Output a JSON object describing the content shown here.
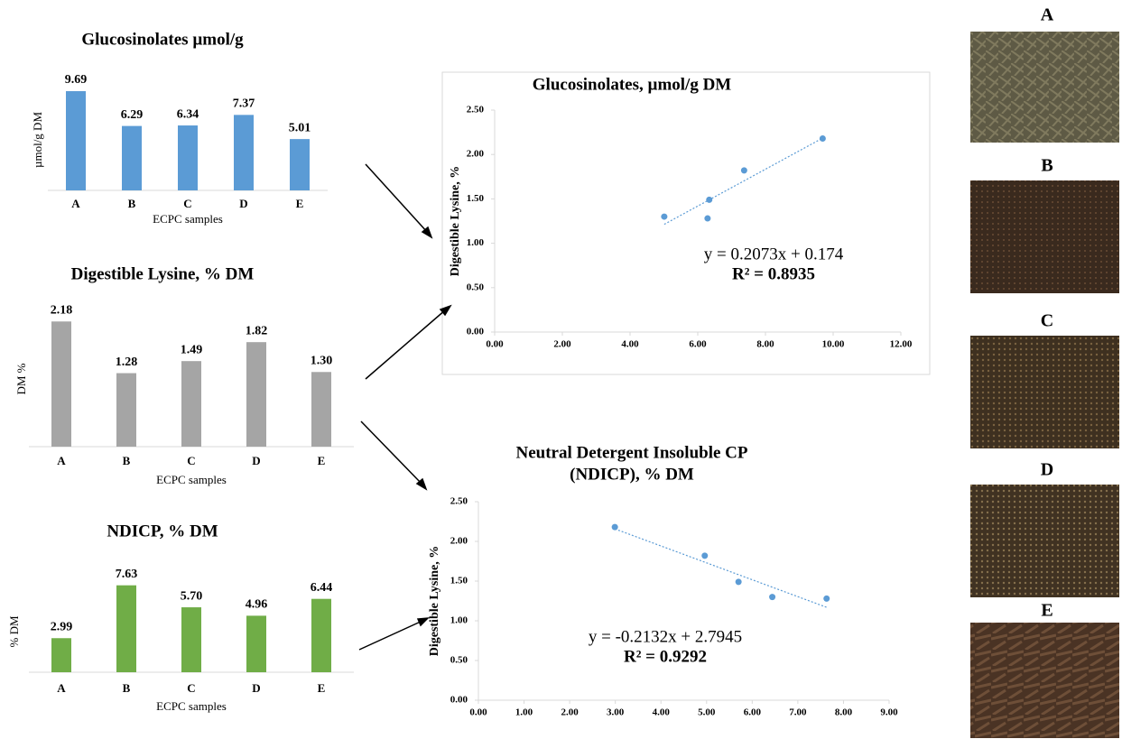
{
  "chart_data": [
    {
      "type": "bar",
      "title": "Glucosinolates µmol/g",
      "y_label": "µmol/g DM",
      "x_label": "ECPC samples",
      "categories": [
        "A",
        "B",
        "C",
        "D",
        "E"
      ],
      "values": [
        9.69,
        6.29,
        6.34,
        7.37,
        5.01
      ],
      "value_labels": [
        "9.69",
        "6.29",
        "6.34",
        "7.37",
        "5.01"
      ],
      "color": "#5b9bd5",
      "ylim": [
        0,
        10
      ]
    },
    {
      "type": "bar",
      "title": "Digestible Lysine, % DM",
      "y_label": "DM %",
      "x_label": "ECPC samples",
      "categories": [
        "A",
        "B",
        "C",
        "D",
        "E"
      ],
      "values": [
        2.18,
        1.28,
        1.49,
        1.82,
        1.3
      ],
      "value_labels": [
        "2.18",
        "1.28",
        "1.49",
        "1.82",
        "1.30"
      ],
      "color": "#a5a5a5",
      "ylim": [
        0,
        2.2
      ]
    },
    {
      "type": "bar",
      "title": "NDICP, % DM",
      "y_label": "% DM",
      "x_label": "ECPC samples",
      "categories": [
        "A",
        "B",
        "C",
        "D",
        "E"
      ],
      "values": [
        2.99,
        7.63,
        5.7,
        4.96,
        6.44
      ],
      "value_labels": [
        "2.99",
        "7.63",
        "5.70",
        "4.96",
        "6.44"
      ],
      "color": "#70ad47",
      "ylim": [
        0,
        8
      ]
    },
    {
      "type": "scatter",
      "title": [
        "Glucosinolates, µmol/g DM"
      ],
      "y_label": "Digestible  Lysine, %",
      "x": [
        9.69,
        6.29,
        6.34,
        7.37,
        5.01
      ],
      "values": [
        2.18,
        1.28,
        1.49,
        1.82,
        1.3
      ],
      "color": "#5b9bd5",
      "equation": "y = 0.2073x + 0.174",
      "r_squared": "R² = 0.8935",
      "xlim": [
        0,
        12
      ],
      "ylim": [
        0,
        2.5
      ],
      "xticks": [
        {
          "value": 0,
          "label": "0.00"
        },
        {
          "value": 2,
          "label": "2.00"
        },
        {
          "value": 4,
          "label": "4.00"
        },
        {
          "value": 6,
          "label": "6.00"
        },
        {
          "value": 8,
          "label": "8.00"
        },
        {
          "value": 10,
          "label": "10.00"
        },
        {
          "value": 12,
          "label": "12.00"
        }
      ],
      "yticks": [
        {
          "value": 0,
          "label": "0.00"
        },
        {
          "value": 0.5,
          "label": "0.50"
        },
        {
          "value": 1,
          "label": "1.00"
        },
        {
          "value": 1.5,
          "label": "1.50"
        },
        {
          "value": 2,
          "label": "2.00"
        },
        {
          "value": 2.5,
          "label": "2.50"
        }
      ]
    },
    {
      "type": "scatter",
      "title": [
        "Neutral Detergent Insoluble CP",
        "(NDICP), % DM"
      ],
      "y_label": "Digestible Lysine, %",
      "x": [
        2.99,
        7.63,
        5.7,
        4.96,
        6.44
      ],
      "values": [
        2.18,
        1.28,
        1.49,
        1.82,
        1.3
      ],
      "color": "#5b9bd5",
      "equation": "y = -0.2132x + 2.7945",
      "r_squared": "R² = 0.9292",
      "xlim": [
        0,
        9
      ],
      "ylim": [
        0,
        2.5
      ],
      "xticks": [
        {
          "value": 0,
          "label": "0.00"
        },
        {
          "value": 1,
          "label": "1.00"
        },
        {
          "value": 2,
          "label": "2.00"
        },
        {
          "value": 3,
          "label": "3.00"
        },
        {
          "value": 4,
          "label": "4.00"
        },
        {
          "value": 5,
          "label": "5.00"
        },
        {
          "value": 6,
          "label": "6.00"
        },
        {
          "value": 7,
          "label": "7.00"
        },
        {
          "value": 8,
          "label": "8.00"
        },
        {
          "value": 9,
          "label": "9.00"
        }
      ],
      "yticks": [
        {
          "value": 0,
          "label": "0.00"
        },
        {
          "value": 0.5,
          "label": "0.50"
        },
        {
          "value": 1,
          "label": "1.00"
        },
        {
          "value": 1.5,
          "label": "1.50"
        },
        {
          "value": 2,
          "label": "2.00"
        },
        {
          "value": 2.5,
          "label": "2.50"
        }
      ]
    }
  ],
  "photos": [
    {
      "label": "A"
    },
    {
      "label": "B"
    },
    {
      "label": "C"
    },
    {
      "label": "D"
    },
    {
      "label": "E"
    }
  ]
}
